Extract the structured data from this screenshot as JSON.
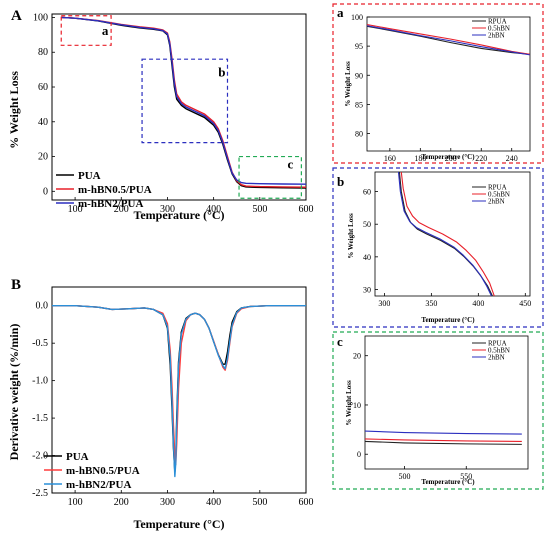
{
  "chart_data": [
    {
      "id": "A",
      "type": "line",
      "panel_label": "A",
      "xlabel": "Temperature (°C)",
      "ylabel": "% Weight Loss",
      "xlim": [
        50,
        600
      ],
      "ylim": [
        -5,
        102
      ],
      "xticks": [
        100,
        200,
        300,
        400,
        500,
        600
      ],
      "yticks": [
        0,
        20,
        40,
        60,
        80,
        100
      ],
      "legend_position": "bottom-left",
      "series": [
        {
          "name": "PUA",
          "color": "#000000",
          "x": [
            70,
            100,
            150,
            200,
            240,
            270,
            290,
            300,
            305,
            310,
            315,
            320,
            330,
            340,
            360,
            380,
            400,
            410,
            420,
            430,
            440,
            450,
            460,
            470,
            500,
            550,
            600
          ],
          "y": [
            100,
            99.6,
            98,
            95.5,
            94,
            93.2,
            92.3,
            90,
            84,
            72,
            60,
            53,
            49.5,
            47.5,
            45,
            42.5,
            38,
            34,
            27,
            18,
            10,
            5.5,
            3.2,
            2.5,
            2.2,
            2.0,
            1.9
          ]
        },
        {
          "name": "m-hBN0.5/PUA",
          "color": "#e8202a",
          "x": [
            70,
            100,
            150,
            200,
            240,
            270,
            290,
            300,
            305,
            310,
            315,
            320,
            330,
            340,
            360,
            380,
            400,
            410,
            420,
            430,
            440,
            450,
            460,
            470,
            500,
            550,
            600
          ],
          "y": [
            100,
            99.6,
            98.2,
            96,
            94.6,
            93.8,
            92.8,
            91,
            86,
            76,
            64,
            56,
            51.5,
            49.5,
            47,
            44.5,
            40,
            36,
            29,
            20,
            11,
            6,
            3.8,
            3.0,
            2.7,
            2.5,
            2.4
          ]
        },
        {
          "name": "m-hBN2/PUA",
          "color": "#2b2fbf",
          "x": [
            70,
            100,
            150,
            200,
            240,
            270,
            290,
            300,
            305,
            310,
            315,
            320,
            330,
            340,
            360,
            380,
            400,
            410,
            420,
            430,
            440,
            450,
            460,
            470,
            500,
            550,
            600
          ],
          "y": [
            100,
            99.6,
            98.1,
            95.8,
            94.3,
            93.5,
            92.5,
            90.5,
            85,
            74,
            62,
            54.5,
            50.5,
            48.5,
            46,
            43.5,
            39,
            35,
            28,
            19,
            10.5,
            6.5,
            5.0,
            4.6,
            4.4,
            4.2,
            4.1
          ]
        }
      ],
      "annotations": [
        {
          "text": "a",
          "x1": 70,
          "x2": 178,
          "y1": 84,
          "y2": 101,
          "color": "#e8202a",
          "label_x": 158,
          "label_y": 90
        },
        {
          "text": "b",
          "x1": 245,
          "x2": 430,
          "y1": 28,
          "y2": 76,
          "color": "#2b2fbf",
          "label_x": 410,
          "label_y": 66
        },
        {
          "text": "c",
          "x1": 455,
          "x2": 590,
          "y1": -4,
          "y2": 20,
          "color": "#22aa55",
          "label_x": 560,
          "label_y": 13
        }
      ]
    },
    {
      "id": "B",
      "type": "line",
      "panel_label": "B",
      "xlabel": "Temperature (°C)",
      "ylabel": "Derivative weight (%/min)",
      "xlim": [
        50,
        600
      ],
      "ylim": [
        -2.5,
        0.25
      ],
      "xticks": [
        100,
        200,
        300,
        400,
        500,
        600
      ],
      "yticks": [
        0.0,
        -0.5,
        -1.0,
        -1.5,
        -2.0,
        -2.5
      ],
      "legend_position": "bottom-left",
      "series": [
        {
          "name": "PUA",
          "color": "#000000",
          "x": [
            50,
            100,
            150,
            180,
            220,
            250,
            270,
            290,
            300,
            306,
            310,
            313,
            316,
            318,
            320,
            324,
            330,
            340,
            350,
            360,
            370,
            380,
            390,
            400,
            410,
            420,
            425,
            430,
            435,
            440,
            450,
            460,
            480,
            520,
            600
          ],
          "y": [
            0,
            0,
            -0.02,
            -0.05,
            -0.04,
            -0.03,
            -0.05,
            -0.12,
            -0.3,
            -0.8,
            -1.4,
            -1.9,
            -2.22,
            -2.05,
            -1.5,
            -0.75,
            -0.35,
            -0.17,
            -0.12,
            -0.1,
            -0.12,
            -0.18,
            -0.3,
            -0.48,
            -0.65,
            -0.78,
            -0.78,
            -0.62,
            -0.4,
            -0.22,
            -0.08,
            -0.03,
            -0.01,
            0,
            0
          ]
        },
        {
          "name": "m-hBN0.5/PUA",
          "color": "#ff3b3b",
          "x": [
            50,
            100,
            150,
            180,
            220,
            250,
            270,
            290,
            300,
            306,
            310,
            313,
            316,
            318,
            320,
            324,
            330,
            340,
            350,
            360,
            370,
            380,
            390,
            400,
            410,
            420,
            425,
            430,
            435,
            440,
            450,
            460,
            480,
            520,
            600
          ],
          "y": [
            0,
            0,
            -0.02,
            -0.05,
            -0.04,
            -0.03,
            -0.05,
            -0.1,
            -0.24,
            -0.6,
            -1.1,
            -1.6,
            -2.0,
            -2.12,
            -1.85,
            -1.1,
            -0.5,
            -0.2,
            -0.12,
            -0.1,
            -0.12,
            -0.18,
            -0.3,
            -0.47,
            -0.65,
            -0.82,
            -0.86,
            -0.73,
            -0.5,
            -0.28,
            -0.1,
            -0.04,
            -0.01,
            0,
            0
          ]
        },
        {
          "name": "m-hBN2/PUA",
          "color": "#2a8fd8",
          "x": [
            50,
            100,
            150,
            180,
            220,
            250,
            270,
            290,
            300,
            306,
            310,
            313,
            316,
            318,
            320,
            324,
            330,
            340,
            350,
            360,
            370,
            380,
            390,
            400,
            410,
            420,
            425,
            430,
            435,
            440,
            450,
            460,
            480,
            520,
            600
          ],
          "y": [
            0,
            0,
            -0.02,
            -0.05,
            -0.04,
            -0.03,
            -0.05,
            -0.12,
            -0.28,
            -0.7,
            -1.3,
            -1.85,
            -2.28,
            -2.1,
            -1.6,
            -0.8,
            -0.38,
            -0.18,
            -0.12,
            -0.1,
            -0.12,
            -0.18,
            -0.3,
            -0.48,
            -0.66,
            -0.8,
            -0.84,
            -0.7,
            -0.47,
            -0.26,
            -0.09,
            -0.03,
            -0.01,
            0,
            0
          ]
        }
      ]
    },
    {
      "id": "a",
      "type": "line",
      "panel_label": "a",
      "xlabel": "Temperature (°C)",
      "ylabel": "% Weight Loss",
      "xlim": [
        145,
        252
      ],
      "ylim": [
        77,
        100
      ],
      "xticks": [
        160,
        180,
        200,
        220,
        240
      ],
      "yticks": [
        80,
        85,
        90,
        95,
        100
      ],
      "border_color": "#e8202a",
      "legend_position": "top-right",
      "series": [
        {
          "name": "RPUA",
          "color": "#222222",
          "x": [
            145,
            160,
            180,
            200,
            220,
            240,
            252
          ],
          "y": [
            98.4,
            97.7,
            96.7,
            95.6,
            94.6,
            93.9,
            93.6
          ]
        },
        {
          "name": "0.5hBN",
          "color": "#e8202a",
          "x": [
            145,
            160,
            180,
            200,
            220,
            240,
            252
          ],
          "y": [
            98.7,
            98.0,
            97.1,
            96.2,
            95.2,
            94.1,
            93.6
          ]
        },
        {
          "name": "2hBN",
          "color": "#2b2fbf",
          "x": [
            145,
            160,
            180,
            200,
            220,
            240,
            252
          ],
          "y": [
            98.5,
            97.8,
            96.8,
            95.9,
            94.9,
            94.0,
            93.5
          ]
        }
      ]
    },
    {
      "id": "b",
      "type": "line",
      "panel_label": "b",
      "xlabel": "Temperature (°C)",
      "ylabel": "% Weight Loss",
      "xlim": [
        290,
        455
      ],
      "ylim": [
        28,
        66
      ],
      "xticks": [
        300,
        350,
        400,
        450
      ],
      "yticks": [
        30,
        40,
        50,
        60
      ],
      "border_color": "#2b2fbf",
      "legend_position": "top-right",
      "series": [
        {
          "name": "RPUA",
          "color": "#222222",
          "x": [
            316,
            318,
            322,
            328,
            335,
            345,
            360,
            375,
            385,
            395,
            403,
            410,
            415
          ],
          "y": [
            66,
            60,
            54,
            50.5,
            48.5,
            47,
            45,
            42.5,
            40,
            37,
            34,
            31,
            28
          ]
        },
        {
          "name": "0.5hBN",
          "color": "#e8202a",
          "x": [
            318,
            320,
            324,
            330,
            337,
            347,
            362,
            377,
            387,
            397,
            405,
            412,
            417
          ],
          "y": [
            66,
            61,
            55.5,
            52.5,
            50.5,
            49,
            47,
            44.5,
            42,
            39,
            35.5,
            32,
            28
          ]
        },
        {
          "name": "2hBN",
          "color": "#2b2fbf",
          "x": [
            315,
            317,
            321,
            327,
            334,
            344,
            359,
            374,
            384,
            394,
            402,
            409,
            414
          ],
          "y": [
            66,
            60,
            54,
            50.8,
            49,
            47.5,
            45.5,
            43,
            40.5,
            37.5,
            34.5,
            31,
            28
          ]
        }
      ]
    },
    {
      "id": "c",
      "type": "line",
      "panel_label": "c",
      "xlabel": "Temperature (°C)",
      "ylabel": "% Weight Loss",
      "xlim": [
        468,
        600
      ],
      "ylim": [
        -3,
        24
      ],
      "xticks": [
        500,
        550
      ],
      "yticks": [
        0,
        10,
        20
      ],
      "border_color": "#22aa55",
      "legend_position": "top-right",
      "series": [
        {
          "name": "RPUA",
          "color": "#222222",
          "x": [
            468,
            500,
            550,
            595
          ],
          "y": [
            2.6,
            2.3,
            2.1,
            2.0
          ]
        },
        {
          "name": "0.5hBN",
          "color": "#e8202a",
          "x": [
            468,
            500,
            550,
            595
          ],
          "y": [
            3.1,
            2.9,
            2.7,
            2.6
          ]
        },
        {
          "name": "2hBN",
          "color": "#2b2fbf",
          "x": [
            468,
            500,
            550,
            595
          ],
          "y": [
            4.7,
            4.4,
            4.2,
            4.1
          ]
        }
      ]
    }
  ]
}
